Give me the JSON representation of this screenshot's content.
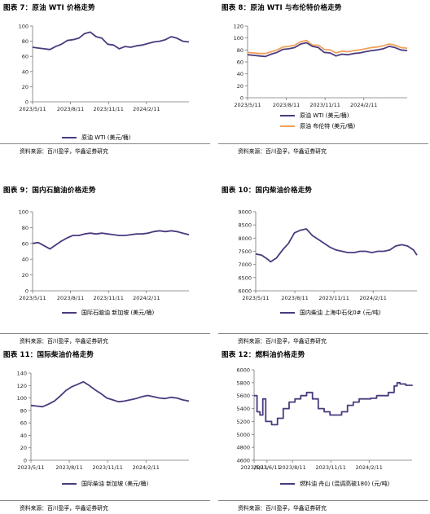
{
  "panels": [
    {
      "title": "图表 7：原油 WTI 价格走势",
      "source": "资料来源：百川盈孚，华鑫证券研究",
      "legend": [
        {
          "label": "原油 WTI (美元/桶)",
          "color": "#4b3a7e"
        }
      ],
      "chart_data": {
        "type": "line",
        "ylim": [
          0,
          100
        ],
        "yticks": [
          0,
          20,
          40,
          60,
          80,
          100
        ],
        "xticklabels": [
          "2023/5/11",
          "2023/8/11",
          "2023/11/11",
          "2024/2/11"
        ],
        "x_start": "2023-05-11",
        "x_end": "2024-05-24",
        "series": [
          {
            "name": "原油 WTI (美元/桶)",
            "color": "#4b3a7e",
            "x": [
              "2023-05-11",
              "2023-05-25",
              "2023-06-08",
              "2023-06-22",
              "2023-07-06",
              "2023-07-20",
              "2023-08-03",
              "2023-08-17",
              "2023-08-31",
              "2023-09-14",
              "2023-09-28",
              "2023-10-12",
              "2023-10-26",
              "2023-11-09",
              "2023-11-23",
              "2023-12-07",
              "2023-12-21",
              "2024-01-04",
              "2024-01-18",
              "2024-02-01",
              "2024-02-15",
              "2024-02-29",
              "2024-03-14",
              "2024-03-28",
              "2024-04-11",
              "2024-04-25",
              "2024-05-09",
              "2024-05-24"
            ],
            "y": [
              72,
              71,
              70,
              69,
              73,
              76,
              81,
              82,
              84,
              90,
              92,
              86,
              84,
              76,
              75,
              70,
              73,
              72,
              74,
              75,
              77,
              79,
              80,
              82,
              86,
              84,
              80,
              79
            ]
          }
        ]
      }
    },
    {
      "title": "图表 8：原油 WTI 与布伦特价格走势",
      "source": "资料来源：百川盈孚，华鑫证券研究",
      "legend": [
        {
          "label": "原油 WTI (美元/桶)",
          "color": "#4b3a7e"
        },
        {
          "label": "原油 布伦特 (美元/桶)",
          "color": "#f2a05a"
        }
      ],
      "chart_data": {
        "type": "line",
        "ylim": [
          0,
          120
        ],
        "yticks": [
          0,
          20,
          40,
          60,
          80,
          100,
          120
        ],
        "xticklabels": [
          "2023/5/11",
          "2023/8/11",
          "2023/11/11",
          "2024/2/11"
        ],
        "x_start": "2023-05-11",
        "x_end": "2024-05-24",
        "series": [
          {
            "name": "原油 WTI (美元/桶)",
            "color": "#4b3a7e",
            "x": [
              "2023-05-11",
              "2023-05-25",
              "2023-06-08",
              "2023-06-22",
              "2023-07-06",
              "2023-07-20",
              "2023-08-03",
              "2023-08-17",
              "2023-08-31",
              "2023-09-14",
              "2023-09-28",
              "2023-10-12",
              "2023-10-26",
              "2023-11-09",
              "2023-11-23",
              "2023-12-07",
              "2023-12-21",
              "2024-01-04",
              "2024-01-18",
              "2024-02-01",
              "2024-02-15",
              "2024-02-29",
              "2024-03-14",
              "2024-03-28",
              "2024-04-11",
              "2024-04-25",
              "2024-05-09",
              "2024-05-24"
            ],
            "y": [
              72,
              71,
              70,
              69,
              73,
              76,
              81,
              82,
              84,
              90,
              92,
              86,
              84,
              76,
              75,
              70,
              73,
              72,
              74,
              75,
              77,
              79,
              80,
              82,
              86,
              84,
              80,
              79
            ]
          },
          {
            "name": "原油 布伦特 (美元/桶)",
            "color": "#f2a05a",
            "x": [
              "2023-05-11",
              "2023-05-25",
              "2023-06-08",
              "2023-06-22",
              "2023-07-06",
              "2023-07-20",
              "2023-08-03",
              "2023-08-17",
              "2023-08-31",
              "2023-09-14",
              "2023-09-28",
              "2023-10-12",
              "2023-10-26",
              "2023-11-09",
              "2023-11-23",
              "2023-12-07",
              "2023-12-21",
              "2024-01-04",
              "2024-01-18",
              "2024-02-01",
              "2024-02-15",
              "2024-02-29",
              "2024-03-14",
              "2024-03-28",
              "2024-04-11",
              "2024-04-25",
              "2024-05-09",
              "2024-05-24"
            ],
            "y": [
              76,
              75,
              74,
              74,
              77,
              80,
              85,
              86,
              88,
              94,
              96,
              88,
              88,
              81,
              80,
              75,
              78,
              77,
              79,
              80,
              82,
              84,
              85,
              87,
              90,
              88,
              84,
              83
            ]
          }
        ]
      }
    },
    {
      "title": "图表 9：国内石脑油价格走势",
      "source": "资料来源：百川盈孚，华鑫证券研究",
      "legend": [
        {
          "label": "国际石脑油 新加坡 (美元/桶)",
          "color": "#4b3a7e"
        }
      ],
      "chart_data": {
        "type": "line",
        "ylim": [
          0,
          100
        ],
        "yticks": [
          0,
          20,
          40,
          60,
          80,
          100
        ],
        "xticklabels": [
          "2023/5/11",
          "2023/8/11",
          "2023/11/11",
          "2024/2/11"
        ],
        "x_start": "2023-05-11",
        "x_end": "2024-05-24",
        "series": [
          {
            "name": "国际石脑油 新加坡 (美元/桶)",
            "color": "#4b3a7e",
            "x": [
              "2023-05-11",
              "2023-05-25",
              "2023-06-08",
              "2023-06-22",
              "2023-07-06",
              "2023-07-20",
              "2023-08-03",
              "2023-08-17",
              "2023-08-31",
              "2023-09-14",
              "2023-09-28",
              "2023-10-12",
              "2023-10-26",
              "2023-11-09",
              "2023-11-23",
              "2023-12-07",
              "2023-12-21",
              "2024-01-04",
              "2024-01-18",
              "2024-02-01",
              "2024-02-15",
              "2024-02-29",
              "2024-03-14",
              "2024-03-28",
              "2024-04-11",
              "2024-04-25",
              "2024-05-09",
              "2024-05-24"
            ],
            "y": [
              60,
              61,
              57,
              53,
              58,
              63,
              67,
              70,
              70,
              72,
              73,
              72,
              73,
              72,
              71,
              70,
              70,
              71,
              72,
              72,
              73,
              75,
              76,
              75,
              76,
              75,
              73,
              71
            ]
          }
        ]
      }
    },
    {
      "title": "图表 10：国内柴油价格走势",
      "source": "资料来源：百川盈孚，华鑫证券研究",
      "legend": [
        {
          "label": "国内柴油 上海中石化0# (元/吨)",
          "color": "#4b3a7e"
        }
      ],
      "chart_data": {
        "type": "line",
        "ylim": [
          6000,
          9000
        ],
        "yticks": [
          6000,
          6500,
          7000,
          7500,
          8000,
          8500,
          9000
        ],
        "xticklabels": [
          "2023/5/11",
          "2023/8/11",
          "2023/11/11",
          "2024/2/11"
        ],
        "x_start": "2023-05-11",
        "x_end": "2024-05-24",
        "series": [
          {
            "name": "国内柴油 上海中石化0# (元/吨)",
            "color": "#4b3a7e",
            "x": [
              "2023-05-11",
              "2023-05-25",
              "2023-06-08",
              "2023-06-15",
              "2023-06-29",
              "2023-07-13",
              "2023-07-27",
              "2023-08-10",
              "2023-08-24",
              "2023-09-07",
              "2023-09-21",
              "2023-10-05",
              "2023-10-19",
              "2023-11-02",
              "2023-11-16",
              "2023-11-30",
              "2023-12-14",
              "2023-12-28",
              "2024-01-11",
              "2024-01-25",
              "2024-02-08",
              "2024-02-22",
              "2024-03-07",
              "2024-03-21",
              "2024-04-04",
              "2024-04-18",
              "2024-05-02",
              "2024-05-16",
              "2024-05-24"
            ],
            "y": [
              7400,
              7350,
              7200,
              7100,
              7250,
              7550,
              7800,
              8200,
              8300,
              8350,
              8100,
              7950,
              7800,
              7650,
              7550,
              7500,
              7450,
              7450,
              7500,
              7500,
              7450,
              7500,
              7500,
              7550,
              7700,
              7750,
              7700,
              7550,
              7350
            ]
          }
        ]
      }
    },
    {
      "title": "图表 11：国际柴油价格走势",
      "source": "资料来源：百川盈孚，华鑫证券研究",
      "legend": [
        {
          "label": "国际柴油 新加坡 (美元/桶)",
          "color": "#4b3a7e"
        }
      ],
      "chart_data": {
        "type": "line",
        "ylim": [
          0,
          140
        ],
        "yticks": [
          0,
          20,
          40,
          60,
          80,
          100,
          120,
          140
        ],
        "xticklabels": [
          "2023/5/11",
          "2023/8/11",
          "2023/11/11",
          "2024/2/11"
        ],
        "x_start": "2023-05-11",
        "x_end": "2024-05-24",
        "series": [
          {
            "name": "国际柴油 新加坡 (美元/桶)",
            "color": "#4b3a7e",
            "x": [
              "2023-05-11",
              "2023-05-25",
              "2023-06-08",
              "2023-06-22",
              "2023-07-06",
              "2023-07-20",
              "2023-08-03",
              "2023-08-17",
              "2023-08-31",
              "2023-09-14",
              "2023-09-28",
              "2023-10-12",
              "2023-10-26",
              "2023-11-09",
              "2023-11-23",
              "2023-12-07",
              "2023-12-21",
              "2024-01-04",
              "2024-01-18",
              "2024-02-01",
              "2024-02-15",
              "2024-02-29",
              "2024-03-14",
              "2024-03-28",
              "2024-04-11",
              "2024-04-25",
              "2024-05-09",
              "2024-05-24"
            ],
            "y": [
              88,
              87,
              86,
              90,
              95,
              103,
              112,
              118,
              122,
              126,
              120,
              113,
              107,
              100,
              97,
              94,
              95,
              97,
              99,
              102,
              104,
              102,
              100,
              99,
              101,
              100,
              97,
              95
            ]
          }
        ]
      }
    },
    {
      "title": "图表 12：燃料油价格走势",
      "source": "资料来源：百川盈孚，华鑫证券研究",
      "legend": [
        {
          "label": "燃料油 舟山 (混调高硫180) (元/吨)",
          "color": "#4b3a7e"
        }
      ],
      "chart_data": {
        "type": "line",
        "ylim": [
          4600,
          6000
        ],
        "yticks": [
          4600,
          4800,
          5000,
          5200,
          5400,
          5600,
          5800,
          6000
        ],
        "xticklabels": [
          "2023/5/11",
          "2023/6/11",
          "2023/8/11",
          "2023/11/11",
          "2024/2/11"
        ],
        "xtick_dates": [
          "2023-05-11",
          "2023-06-11",
          "2023-08-11",
          "2023-11-11",
          "2024-02-11"
        ],
        "x_start": "2023-05-11",
        "x_end": "2024-05-24",
        "step": true,
        "series": [
          {
            "name": "燃料油 舟山 (混调高硫180) (元/吨)",
            "color": "#4b3a7e",
            "x": [
              "2023-05-11",
              "2023-05-18",
              "2023-05-25",
              "2023-06-01",
              "2023-06-08",
              "2023-06-22",
              "2023-07-06",
              "2023-07-20",
              "2023-08-03",
              "2023-08-17",
              "2023-08-31",
              "2023-09-14",
              "2023-09-28",
              "2023-10-12",
              "2023-10-26",
              "2023-11-09",
              "2023-11-23",
              "2023-12-07",
              "2023-12-21",
              "2024-01-04",
              "2024-01-18",
              "2024-02-01",
              "2024-02-15",
              "2024-02-29",
              "2024-03-14",
              "2024-03-28",
              "2024-04-11",
              "2024-04-18",
              "2024-04-25",
              "2024-05-09",
              "2024-05-24"
            ],
            "y": [
              5600,
              5350,
              5300,
              5550,
              5200,
              5150,
              5250,
              5400,
              5500,
              5550,
              5600,
              5650,
              5550,
              5400,
              5350,
              5300,
              5300,
              5350,
              5450,
              5500,
              5550,
              5550,
              5560,
              5600,
              5600,
              5650,
              5750,
              5800,
              5780,
              5760,
              5750
            ]
          }
        ]
      }
    }
  ]
}
